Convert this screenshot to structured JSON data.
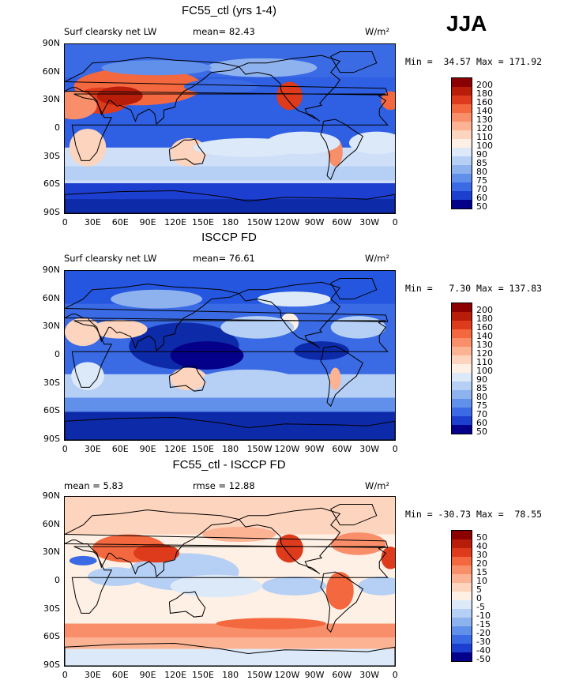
{
  "season": "JJA",
  "panels": [
    {
      "title": "FC55_ctl (yrs 1-4)",
      "left_label": "Surf clearsky net LW",
      "stat1": "mean=  82.43",
      "stat2": "",
      "units": "W/m²",
      "minmax": "Min =  34.57 Max = 171.92",
      "colorbar_labels": [
        "200",
        "180",
        "160",
        "140",
        "130",
        "120",
        "110",
        "100",
        "90",
        "85",
        "80",
        "75",
        "70",
        "60",
        "50"
      ],
      "palette": "warm"
    },
    {
      "title": "ISCCP FD",
      "left_label": "Surf clearsky net LW",
      "stat1": "mean=  76.61",
      "stat2": "",
      "units": "W/m²",
      "minmax": "Min =   7.30 Max = 137.83",
      "colorbar_labels": [
        "200",
        "180",
        "160",
        "140",
        "130",
        "120",
        "110",
        "100",
        "90",
        "85",
        "80",
        "75",
        "70",
        "60",
        "50"
      ],
      "palette": "warm"
    },
    {
      "title": "FC55_ctl - ISCCP FD",
      "left_label": "mean =    5.83",
      "stat1": "rmse =  12.88",
      "stat2": "",
      "units": "W/m²",
      "minmax": "Min = -30.73 Max =  78.55",
      "colorbar_labels": [
        "50",
        "40",
        "30",
        "20",
        "15",
        "10",
        "5",
        "0",
        "-5",
        "-10",
        "-15",
        "-20",
        "-30",
        "-40",
        "-50"
      ],
      "palette": "diff"
    }
  ],
  "axes": {
    "lat_ticks": [
      "90N",
      "60N",
      "30N",
      "0",
      "30S",
      "60S",
      "90S"
    ],
    "lon_ticks": [
      "0",
      "30E",
      "60E",
      "90E",
      "120E",
      "150E",
      "180",
      "150W",
      "120W",
      "90W",
      "60W",
      "30W",
      "0"
    ]
  },
  "colors": {
    "cbar": [
      "#8b0000",
      "#b81d0a",
      "#de3b1c",
      "#f4683f",
      "#f98f6a",
      "#fcb394",
      "#fdd4bd",
      "#fef0e4",
      "#dce9f9",
      "#b5cff5",
      "#8eb2ee",
      "#6190ea",
      "#3a6ae4",
      "#1d3fd0",
      "#05008a"
    ],
    "ocean_base": "#2456e0",
    "ocean_light": "#cfe0f8"
  },
  "chart_data": [
    {
      "type": "heatmap",
      "title": "FC55_ctl (yrs 1-4)",
      "subtitle": "Surf clearsky net LW",
      "units": "W/m²",
      "mean": 82.43,
      "min": 34.57,
      "max": 171.92,
      "x_ticks": [
        "0",
        "30E",
        "60E",
        "90E",
        "120E",
        "150E",
        "180",
        "150W",
        "120W",
        "90W",
        "60W",
        "30W",
        "0"
      ],
      "y_ticks": [
        "90N",
        "60N",
        "30N",
        "0",
        "30S",
        "60S",
        "90S"
      ],
      "levels": [
        50,
        60,
        70,
        75,
        80,
        85,
        90,
        100,
        110,
        120,
        130,
        140,
        160,
        180,
        200
      ]
    },
    {
      "type": "heatmap",
      "title": "ISCCP FD",
      "subtitle": "Surf clearsky net LW",
      "units": "W/m²",
      "mean": 76.61,
      "min": 7.3,
      "max": 137.83,
      "x_ticks": [
        "0",
        "30E",
        "60E",
        "90E",
        "120E",
        "150E",
        "180",
        "150W",
        "120W",
        "90W",
        "60W",
        "30W",
        "0"
      ],
      "y_ticks": [
        "90N",
        "60N",
        "30N",
        "0",
        "30S",
        "60S",
        "90S"
      ],
      "levels": [
        50,
        60,
        70,
        75,
        80,
        85,
        90,
        100,
        110,
        120,
        130,
        140,
        160,
        180,
        200
      ]
    },
    {
      "type": "heatmap",
      "title": "FC55_ctl - ISCCP FD",
      "units": "W/m²",
      "mean": 5.83,
      "rmse": 12.88,
      "min": -30.73,
      "max": 78.55,
      "x_ticks": [
        "0",
        "30E",
        "60E",
        "90E",
        "120E",
        "150E",
        "180",
        "150W",
        "120W",
        "90W",
        "60W",
        "30W",
        "0"
      ],
      "y_ticks": [
        "90N",
        "60N",
        "30N",
        "0",
        "30S",
        "60S",
        "90S"
      ],
      "levels": [
        -50,
        -40,
        -30,
        -20,
        -15,
        -10,
        -5,
        0,
        5,
        10,
        15,
        20,
        30,
        40,
        50
      ]
    }
  ]
}
